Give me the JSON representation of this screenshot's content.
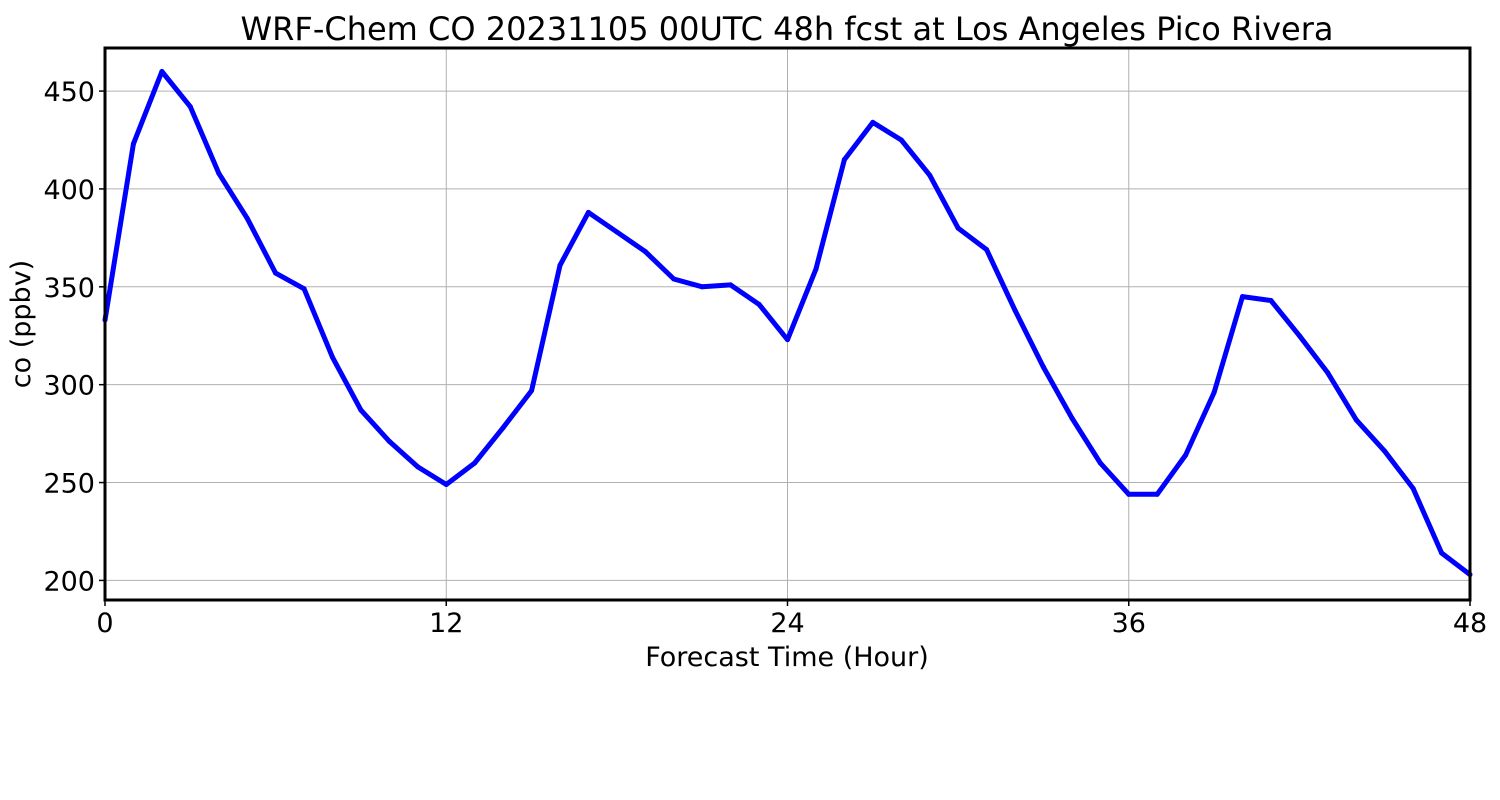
{
  "chart_data": {
    "type": "line",
    "title": "WRF-Chem CO  20231105 00UTC 48h fcst at Los Angeles Pico Rivera",
    "xlabel": "Forecast Time (Hour)",
    "ylabel": "co  (ppbv)",
    "xlim": [
      0,
      48
    ],
    "ylim": [
      190,
      472
    ],
    "xticks": [
      0,
      12,
      24,
      36,
      48
    ],
    "yticks": [
      200,
      250,
      300,
      350,
      400,
      450
    ],
    "grid": true,
    "series": [
      {
        "color": "#0000ff",
        "x": [
          0,
          1,
          2,
          3,
          4,
          5,
          6,
          7,
          8,
          9,
          10,
          11,
          12,
          13,
          14,
          15,
          16,
          17,
          18,
          19,
          20,
          21,
          22,
          23,
          24,
          25,
          26,
          27,
          28,
          29,
          30,
          31,
          32,
          33,
          34,
          35,
          36,
          37,
          38,
          39,
          40,
          41,
          42,
          43,
          44,
          45,
          46,
          47,
          48
        ],
        "values": [
          333,
          423,
          460,
          442,
          408,
          385,
          357,
          349,
          314,
          287,
          271,
          258,
          249,
          260,
          278,
          297,
          361,
          388,
          378,
          368,
          354,
          350,
          351,
          341,
          323,
          359,
          415,
          434,
          425,
          407,
          380,
          369,
          338,
          309,
          283,
          260,
          244,
          244,
          264,
          296,
          345,
          343,
          325,
          306,
          282,
          266,
          247,
          214,
          203
        ]
      }
    ]
  }
}
